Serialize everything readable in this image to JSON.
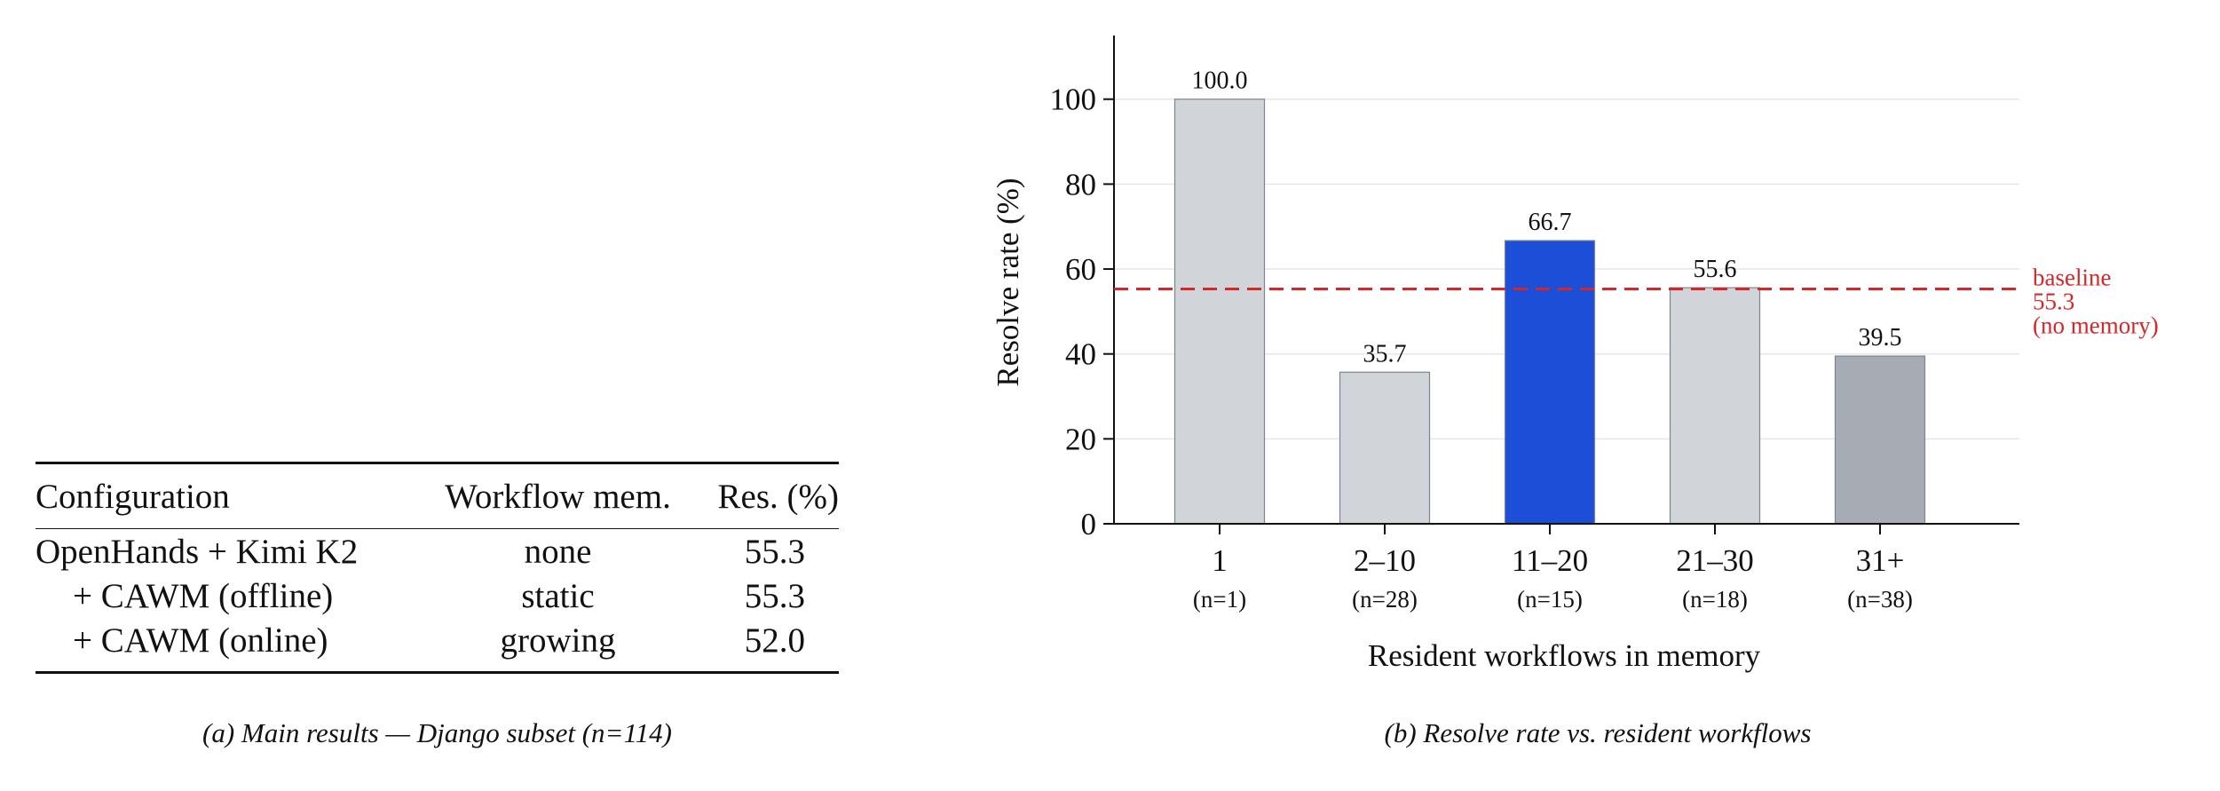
{
  "table": {
    "headers": [
      "Configuration",
      "Workflow mem.",
      "Res. (%)"
    ],
    "rows": [
      {
        "config": "OpenHands + Kimi K2",
        "memory": "none",
        "res": "55.3",
        "indent": false
      },
      {
        "config": "+ CAWM (offline)",
        "memory": "static",
        "res": "55.3",
        "indent": true
      },
      {
        "config": "+ CAWM (online)",
        "memory": "growing",
        "res": "52.0",
        "indent": true
      }
    ],
    "caption": "(a) Main results — Django subset (n=114)"
  },
  "chart_data": {
    "type": "bar",
    "categories": [
      "1",
      "2–10",
      "11–20",
      "21–30",
      "31+"
    ],
    "sublabels": [
      "(n=1)",
      "(n=28)",
      "(n=15)",
      "(n=18)",
      "(n=38)"
    ],
    "values": [
      100.0,
      35.7,
      66.7,
      55.6,
      39.5
    ],
    "value_labels": [
      "100.0",
      "35.7",
      "66.7",
      "55.6",
      "39.5"
    ],
    "bar_colors": [
      "#d1d4d9",
      "#d1d4d9",
      "#1d4ed8",
      "#d1d4d9",
      "#a7acb4"
    ],
    "xlabel": "Resident workflows in memory",
    "ylabel": "Resolve rate (%)",
    "ylim": [
      0,
      115
    ],
    "yticks": [
      0,
      20,
      40,
      60,
      80,
      100
    ],
    "grid": true,
    "reference_line": {
      "value": 55.3,
      "color": "#d62728",
      "label_lines": [
        "baseline",
        "55.3",
        "(no memory)"
      ]
    },
    "caption": "(b) Resolve rate vs. resident workflows"
  }
}
